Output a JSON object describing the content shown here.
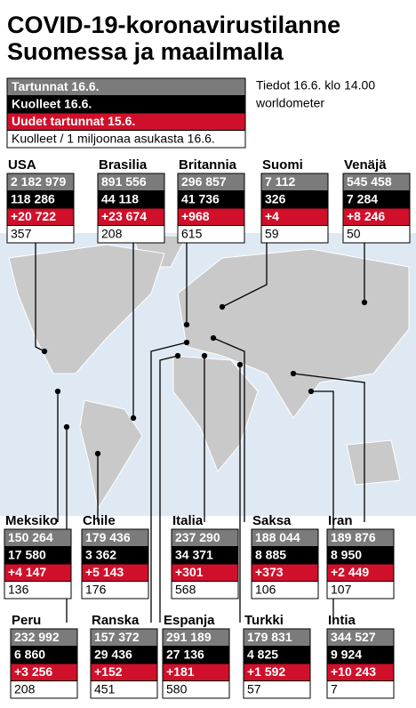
{
  "header": {
    "title_lines": [
      "COVID-19-koronavirustilanne",
      "Suomessa ja maailmalla"
    ]
  },
  "legend": [
    "Tartunnat 16.6.",
    "Kuolleet 16.6.",
    "Uudet tartunnat 15.6.",
    "Kuolleet / 1 miljoonaa asukasta 16.6."
  ],
  "source": [
    "Tiedot 16.6. klo 14.00",
    "worldometer"
  ],
  "countries": [
    {
      "name": "USA",
      "cases": "2 182 979",
      "deaths": "118 286",
      "new_cases": "+20 722",
      "per_million": "357"
    },
    {
      "name": "Brasilia",
      "cases": "891 556",
      "deaths": "44 118",
      "new_cases": "+23 674",
      "per_million": "208"
    },
    {
      "name": "Britannia",
      "cases": "296 857",
      "deaths": "41 736",
      "new_cases": "+968",
      "per_million": "615"
    },
    {
      "name": "Suomi",
      "cases": "7 112",
      "deaths": "326",
      "new_cases": "+4",
      "per_million": "59"
    },
    {
      "name": "Venäjä",
      "cases": "545 458",
      "deaths": "7 284",
      "new_cases": "+8 246",
      "per_million": "50"
    },
    {
      "name": "Meksiko",
      "cases": "150 264",
      "deaths": "17 580",
      "new_cases": "+4 147",
      "per_million": "136"
    },
    {
      "name": "Chile",
      "cases": "179 436",
      "deaths": "3 362",
      "new_cases": "+5 143",
      "per_million": "176"
    },
    {
      "name": "Italia",
      "cases": "237 290",
      "deaths": "34 371",
      "new_cases": "+301",
      "per_million": "568"
    },
    {
      "name": "Saksa",
      "cases": "188 044",
      "deaths": "8 885",
      "new_cases": "+373",
      "per_million": "106"
    },
    {
      "name": "Iran",
      "cases": "189 876",
      "deaths": "8 950",
      "new_cases": "+2 449",
      "per_million": "107"
    },
    {
      "name": "Peru",
      "cases": "232 992",
      "deaths": "6 860",
      "new_cases": "+3 256",
      "per_million": "208"
    },
    {
      "name": "Ranska",
      "cases": "157 372",
      "deaths": "29 436",
      "new_cases": "+152",
      "per_million": "451"
    },
    {
      "name": "Espanja",
      "cases": "291 189",
      "deaths": "27 136",
      "new_cases": "+181",
      "per_million": "580"
    },
    {
      "name": "Turkki",
      "cases": "179 831",
      "deaths": "4 825",
      "new_cases": "+1 592",
      "per_million": "57"
    },
    {
      "name": "Intia",
      "cases": "344 527",
      "deaths": "9 924",
      "new_cases": "+10 243",
      "per_million": "7"
    }
  ]
}
